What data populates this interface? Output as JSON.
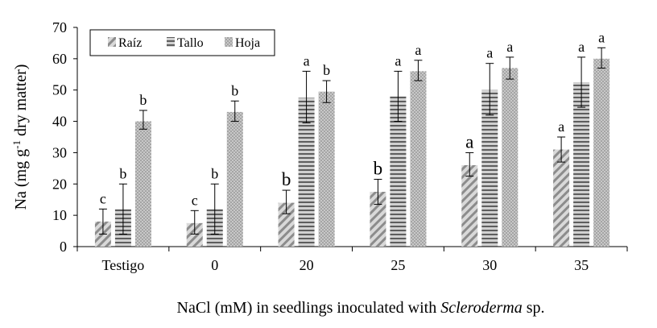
{
  "chart_data": {
    "type": "bar",
    "ylabel_main": "Na (mg g",
    "ylabel_sup": "-1",
    "ylabel_rest": " dry matter)",
    "xlabel_prefix": "NaCl (mM) in seedlings inoculated with ",
    "xlabel_italic": "Scleroderma",
    "xlabel_suffix": " sp.",
    "ylim": [
      0,
      70
    ],
    "yticks": [
      0,
      10,
      20,
      30,
      40,
      50,
      60,
      70
    ],
    "categories": [
      "Testigo",
      "0",
      "20",
      "25",
      "30",
      "35"
    ],
    "legend_position": "top-left",
    "series": [
      {
        "name": "Raíz",
        "pattern": "diagonal",
        "values": [
          8,
          7.5,
          14,
          17.5,
          26,
          31
        ],
        "err_low": [
          4,
          3.5,
          3.5,
          4,
          3.5,
          4
        ],
        "err_high": [
          4,
          4,
          4,
          4,
          4,
          4
        ],
        "letters": [
          "c",
          "c",
          "b",
          "b",
          "a",
          "a"
        ],
        "letter_size": [
          "small",
          "small",
          "large",
          "large",
          "large",
          "small"
        ]
      },
      {
        "name": "Tallo",
        "pattern": "horizontal",
        "values": [
          12,
          12,
          47.5,
          48,
          50,
          52.5
        ],
        "err_low": [
          8,
          8,
          8,
          8,
          8,
          8
        ],
        "err_high": [
          8,
          8,
          8.5,
          8,
          8.5,
          8
        ],
        "letters": [
          "b",
          "b",
          "a",
          "a",
          "a",
          "a"
        ],
        "letter_size": [
          "small",
          "small",
          "small",
          "small",
          "small",
          "small"
        ]
      },
      {
        "name": "Hoja",
        "pattern": "dots",
        "values": [
          40,
          43,
          49.5,
          56,
          57,
          60
        ],
        "err_low": [
          2.5,
          3,
          3.5,
          3,
          3.5,
          3
        ],
        "err_high": [
          3.5,
          3.5,
          3.5,
          3.5,
          3.5,
          3.5
        ],
        "letters": [
          "b",
          "b",
          "b",
          "a",
          "a",
          "a"
        ],
        "letter_size": [
          "small",
          "small",
          "small",
          "small",
          "small",
          "small"
        ]
      }
    ]
  }
}
